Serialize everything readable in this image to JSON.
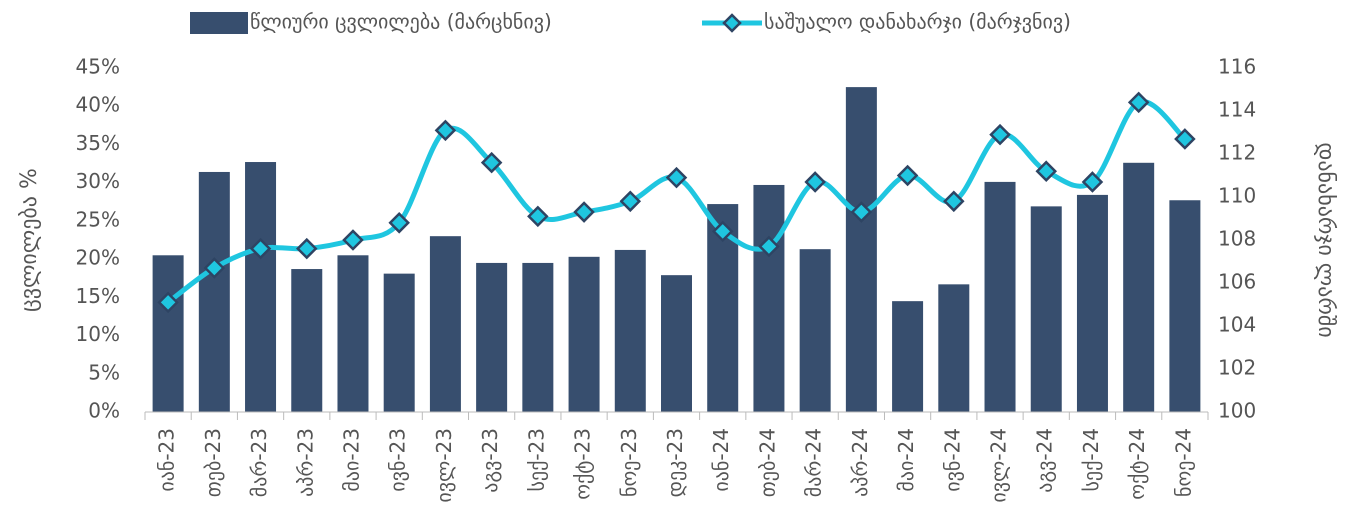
{
  "chart_data": {
    "type": "bar_line",
    "y_label": "ცვლილება %",
    "y2_label": "დანახარჯი ლარში",
    "categories": [
      "იან-23",
      "თებ-23",
      "მარ-23",
      "აპრ-23",
      "მაი-23",
      "ივნ-23",
      "ივლ-23",
      "აგვ-23",
      "სექ-23",
      "ოქტ-23",
      "ნოე-23",
      "დეკ-23",
      "იან-24",
      "თებ-24",
      "მარ-24",
      "აპრ-24",
      "მაი-24",
      "ივნ-24",
      "ივლ-24",
      "აგვ-24",
      "სექ-24",
      "ოქტ-24",
      "ნოე-24"
    ],
    "series": [
      {
        "name": "წლიური ცვლილება (მარცხნივ)",
        "type": "bar",
        "color": "#374e6e",
        "values": [
          20.5,
          31.4,
          32.7,
          18.7,
          20.5,
          18.1,
          23.0,
          19.5,
          19.5,
          20.3,
          21.2,
          17.9,
          27.2,
          29.7,
          21.3,
          42.5,
          14.5,
          16.7,
          30.1,
          26.9,
          28.4,
          32.6,
          27.7
        ]
      },
      {
        "name": "საშუალო დანახარჯი (მარჯვნივ)",
        "type": "line",
        "axis": "y2",
        "color": "#1fc6e0",
        "values": [
          105.1,
          106.7,
          107.6,
          107.6,
          108.0,
          108.8,
          113.1,
          111.6,
          109.1,
          109.3,
          109.8,
          110.9,
          108.4,
          107.7,
          110.7,
          109.3,
          111.0,
          109.8,
          112.9,
          111.2,
          110.7,
          114.4,
          112.7
        ]
      }
    ],
    "ylim": [
      0,
      45
    ],
    "yticks": [
      {
        "value": 0,
        "label": "0%"
      },
      {
        "value": 5,
        "label": "5%"
      },
      {
        "value": 10,
        "label": "10%"
      },
      {
        "value": 15,
        "label": "15%"
      },
      {
        "value": 20,
        "label": "20%"
      },
      {
        "value": 25,
        "label": "25%"
      },
      {
        "value": 30,
        "label": "30%"
      },
      {
        "value": 35,
        "label": "35%"
      },
      {
        "value": 40,
        "label": "40%"
      },
      {
        "value": 45,
        "label": "45%"
      }
    ],
    "y2lim": [
      100,
      116
    ],
    "y2ticks": [
      100,
      102,
      104,
      106,
      108,
      110,
      112,
      114,
      116
    ],
    "grid": false,
    "legend": "top"
  }
}
